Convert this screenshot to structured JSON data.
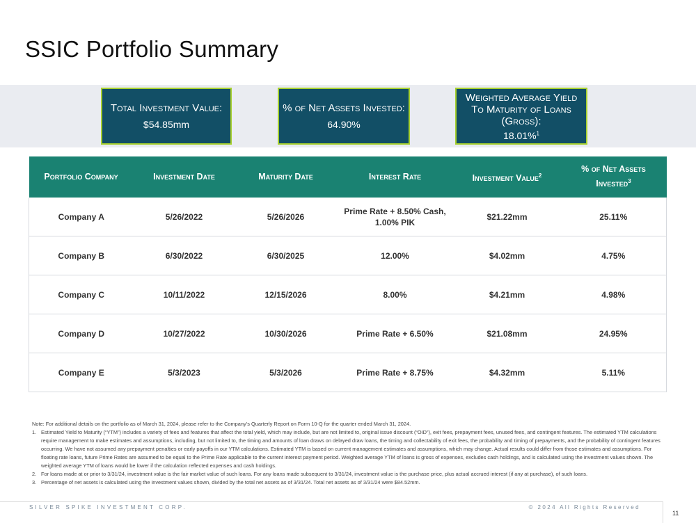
{
  "title": "SSIC Portfolio Summary",
  "kpis": [
    {
      "label": "Total Investment Value:",
      "value": "$54.85mm",
      "sup": ""
    },
    {
      "label": "% of Net Assets Invested:",
      "value": "64.90%",
      "sup": ""
    },
    {
      "label_lines": [
        "Weighted Average Yield",
        "To Maturity of Loans",
        "(Gross):"
      ],
      "value": "18.01%",
      "sup": "1"
    }
  ],
  "table": {
    "headers": [
      {
        "label": "Portfolio Company",
        "sup": ""
      },
      {
        "label": "Investment Date",
        "sup": ""
      },
      {
        "label": "Maturity Date",
        "sup": ""
      },
      {
        "label": "Interest Rate",
        "sup": ""
      },
      {
        "label": "Investment Value",
        "sup": "2"
      },
      {
        "label": "% of Net Assets Invested",
        "sup": "3"
      }
    ],
    "rows": [
      [
        "Company A",
        "5/26/2022",
        "5/26/2026",
        "Prime Rate + 8.50% Cash, 1.00% PIK",
        "$21.22mm",
        "25.11%"
      ],
      [
        "Company B",
        "6/30/2022",
        "6/30/2025",
        "12.00%",
        "$4.02mm",
        "4.75%"
      ],
      [
        "Company C",
        "10/11/2022",
        "12/15/2026",
        "8.00%",
        "$4.21mm",
        "4.98%"
      ],
      [
        "Company D",
        "10/27/2022",
        "10/30/2026",
        "Prime Rate + 6.50%",
        "$21.08mm",
        "24.95%"
      ],
      [
        "Company E",
        "5/3/2023",
        "5/3/2026",
        "Prime Rate + 8.75%",
        "$4.32mm",
        "5.11%"
      ]
    ]
  },
  "notes": {
    "intro": "Note: For additional details on the portfolio as of March 31, 2024, please refer to the Company’s Quarterly Report on Form 10-Q for the quarter ended March 31, 2024.",
    "items": [
      {
        "num": "1.",
        "text": "Estimated Yield to Maturity (“YTM”) includes a variety of fees and features that affect the total yield, which may include, but are not limited to, original issue discount (“OID”), exit fees, prepayment fees, unused fees, and contingent features. The estimated YTM calculations require management to make estimates and assumptions, including, but not limited to, the timing and amounts of loan draws on delayed draw loans, the timing and collectability of exit fees, the probability and timing of prepayments, and the probability of contingent features occurring. We have not assumed any prepayment penalties or early payoffs in our YTM calculations. Estimated YTM is based on current management estimates and assumptions, which may change. Actual results could differ from those estimates and assumptions. For floating rate loans, future Prime Rates are assumed to be equal to the Prime Rate applicable to the current interest payment period. Weighted average YTM of loans is gross of expenses, excludes cash holdings, and is calculated using the investment values shown. The weighted average YTM of loans would be lower if the calculation reflected expenses and cash holdings."
      },
      {
        "num": "2.",
        "text": "For loans made at or prior to 3/31/24, investment value is the fair market value of such loans. For any loans made subsequent to 3/31/24, investment value is the purchase price, plus actual accrued interest (if any at purchase), of such loans."
      },
      {
        "num": "3.",
        "text": "Percentage of net assets is calculated using the investment values shown, divided by the total net assets as of 3/31/24. Total net assets as of 3/31/24 were $84.52mm."
      }
    ]
  },
  "footer": {
    "company": "SILVER SPIKE INVESTMENT CORP.",
    "rights": "© 2024 All Rights Reserved",
    "page": "11"
  },
  "colors": {
    "kpi_bg": "#124f66",
    "kpi_border": "#a7d02f",
    "table_header": "#1a8272"
  }
}
